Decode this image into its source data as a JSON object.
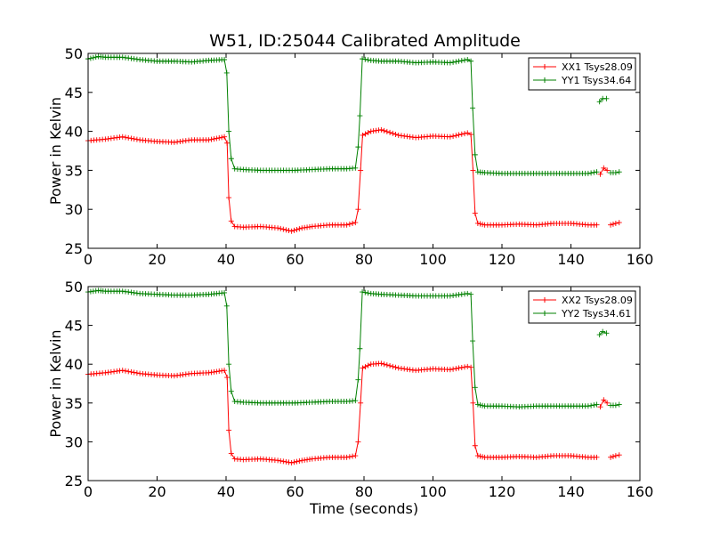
{
  "figure": {
    "title": "W51, ID:25044 Calibrated Amplitude"
  },
  "chart_data": [
    {
      "type": "line",
      "name": "top",
      "xlabel": "",
      "ylabel": "Power in Kelvin",
      "xlim": [
        0,
        160
      ],
      "ylim": [
        25,
        50
      ],
      "xticks": [
        0,
        20,
        40,
        60,
        80,
        100,
        120,
        140,
        160
      ],
      "yticks": [
        25,
        30,
        35,
        40,
        45,
        50
      ],
      "grid": false,
      "legend_position": "top-right",
      "marker": "plus",
      "series": [
        {
          "name": "XX1 Tsys28.09",
          "color": "#ff0000",
          "segments": [
            [
              [
                0,
                38.8
              ],
              [
                5,
                39.0
              ],
              [
                10,
                39.3
              ],
              [
                15,
                38.9
              ],
              [
                20,
                38.7
              ],
              [
                25,
                38.6
              ],
              [
                30,
                38.9
              ],
              [
                35,
                38.9
              ],
              [
                39.5,
                39.3
              ],
              [
                40.3,
                38.5
              ],
              [
                40.8,
                31.5
              ],
              [
                41.5,
                28.5
              ],
              [
                42.5,
                27.8
              ],
              [
                45,
                27.7
              ],
              [
                50,
                27.8
              ],
              [
                55,
                27.6
              ],
              [
                59,
                27.2
              ],
              [
                62,
                27.6
              ],
              [
                65,
                27.8
              ],
              [
                70,
                28.0
              ],
              [
                75,
                28.0
              ],
              [
                77.5,
                28.3
              ],
              [
                78.3,
                30.0
              ],
              [
                79,
                35.0
              ],
              [
                79.6,
                39.5
              ],
              [
                82,
                40.0
              ],
              [
                85,
                40.2
              ],
              [
                90,
                39.5
              ],
              [
                95,
                39.2
              ],
              [
                100,
                39.4
              ],
              [
                105,
                39.3
              ],
              [
                110,
                39.8
              ],
              [
                111,
                39.6
              ],
              [
                111.6,
                35.0
              ],
              [
                112.2,
                29.5
              ],
              [
                113,
                28.2
              ],
              [
                115,
                28.0
              ],
              [
                120,
                28.0
              ],
              [
                125,
                28.1
              ],
              [
                130,
                28.0
              ],
              [
                135,
                28.2
              ],
              [
                140,
                28.2
              ],
              [
                145,
                28.0
              ],
              [
                147.5,
                28.0
              ]
            ],
            [
              [
                148.5,
                34.5
              ],
              [
                149.5,
                35.3
              ],
              [
                150.5,
                35.0
              ]
            ],
            [
              [
                151.5,
                28.0
              ],
              [
                153,
                28.2
              ],
              [
                154,
                28.3
              ]
            ]
          ]
        },
        {
          "name": "YY1 Tsys34.64",
          "color": "#008000",
          "segments": [
            [
              [
                0,
                49.3
              ],
              [
                3,
                49.6
              ],
              [
                5,
                49.5
              ],
              [
                10,
                49.5
              ],
              [
                15,
                49.2
              ],
              [
                20,
                49.0
              ],
              [
                25,
                49.0
              ],
              [
                30,
                48.9
              ],
              [
                35,
                49.1
              ],
              [
                39.5,
                49.2
              ],
              [
                40.2,
                47.5
              ],
              [
                40.8,
                40.0
              ],
              [
                41.5,
                36.5
              ],
              [
                42.5,
                35.2
              ],
              [
                45,
                35.1
              ],
              [
                50,
                35.0
              ],
              [
                55,
                35.0
              ],
              [
                60,
                35.0
              ],
              [
                65,
                35.1
              ],
              [
                70,
                35.2
              ],
              [
                75,
                35.2
              ],
              [
                77.5,
                35.3
              ],
              [
                78.3,
                38.0
              ],
              [
                78.8,
                42.0
              ],
              [
                79.5,
                49.3
              ],
              [
                82,
                49.1
              ],
              [
                85,
                49.0
              ],
              [
                90,
                49.0
              ],
              [
                95,
                48.8
              ],
              [
                100,
                48.9
              ],
              [
                105,
                48.8
              ],
              [
                110,
                49.2
              ],
              [
                111,
                49.0
              ],
              [
                111.5,
                43.0
              ],
              [
                112.2,
                37.0
              ],
              [
                113,
                34.8
              ],
              [
                115,
                34.7
              ],
              [
                120,
                34.6
              ],
              [
                125,
                34.6
              ],
              [
                130,
                34.6
              ],
              [
                135,
                34.6
              ],
              [
                140,
                34.6
              ],
              [
                145,
                34.6
              ],
              [
                147.5,
                34.8
              ]
            ],
            [
              [
                148.3,
                43.8
              ],
              [
                149.2,
                44.2
              ],
              [
                150.3,
                44.2
              ]
            ],
            [
              [
                151.5,
                34.7
              ],
              [
                153,
                34.7
              ],
              [
                154,
                34.8
              ]
            ]
          ]
        }
      ]
    },
    {
      "type": "line",
      "name": "bottom",
      "xlabel": "Time (seconds)",
      "ylabel": "Power in Kelvin",
      "xlim": [
        0,
        160
      ],
      "ylim": [
        25,
        50
      ],
      "xticks": [
        0,
        20,
        40,
        60,
        80,
        100,
        120,
        140,
        160
      ],
      "yticks": [
        25,
        30,
        35,
        40,
        45,
        50
      ],
      "grid": false,
      "legend_position": "top-right",
      "marker": "plus",
      "series": [
        {
          "name": "XX2 Tsys28.09",
          "color": "#ff0000",
          "segments": [
            [
              [
                0,
                38.7
              ],
              [
                5,
                38.9
              ],
              [
                10,
                39.2
              ],
              [
                15,
                38.8
              ],
              [
                20,
                38.6
              ],
              [
                25,
                38.5
              ],
              [
                30,
                38.8
              ],
              [
                35,
                38.9
              ],
              [
                39.5,
                39.2
              ],
              [
                40.3,
                38.3
              ],
              [
                40.8,
                31.5
              ],
              [
                41.5,
                28.5
              ],
              [
                42.5,
                27.8
              ],
              [
                45,
                27.7
              ],
              [
                50,
                27.8
              ],
              [
                55,
                27.6
              ],
              [
                59,
                27.3
              ],
              [
                62,
                27.6
              ],
              [
                65,
                27.8
              ],
              [
                70,
                28.0
              ],
              [
                75,
                28.0
              ],
              [
                77.5,
                28.2
              ],
              [
                78.3,
                30.0
              ],
              [
                79,
                35.0
              ],
              [
                79.6,
                39.5
              ],
              [
                82,
                40.0
              ],
              [
                85,
                40.1
              ],
              [
                90,
                39.5
              ],
              [
                95,
                39.2
              ],
              [
                100,
                39.4
              ],
              [
                105,
                39.3
              ],
              [
                110,
                39.7
              ],
              [
                111,
                39.6
              ],
              [
                111.6,
                35.0
              ],
              [
                112.2,
                29.5
              ],
              [
                113,
                28.2
              ],
              [
                115,
                28.0
              ],
              [
                120,
                28.0
              ],
              [
                125,
                28.1
              ],
              [
                130,
                28.0
              ],
              [
                135,
                28.2
              ],
              [
                140,
                28.2
              ],
              [
                145,
                28.0
              ],
              [
                147.5,
                28.0
              ]
            ],
            [
              [
                148.5,
                34.5
              ],
              [
                149.5,
                35.4
              ],
              [
                150.5,
                35.0
              ]
            ],
            [
              [
                151.5,
                28.0
              ],
              [
                153,
                28.2
              ],
              [
                154,
                28.3
              ]
            ]
          ]
        },
        {
          "name": "YY2 Tsys34.61",
          "color": "#008000",
          "segments": [
            [
              [
                0,
                49.3
              ],
              [
                3,
                49.5
              ],
              [
                5,
                49.4
              ],
              [
                10,
                49.4
              ],
              [
                15,
                49.1
              ],
              [
                20,
                49.0
              ],
              [
                25,
                48.9
              ],
              [
                30,
                48.9
              ],
              [
                35,
                49.0
              ],
              [
                39.5,
                49.2
              ],
              [
                40.2,
                47.5
              ],
              [
                40.8,
                40.0
              ],
              [
                41.5,
                36.5
              ],
              [
                42.5,
                35.2
              ],
              [
                45,
                35.1
              ],
              [
                50,
                35.0
              ],
              [
                55,
                35.0
              ],
              [
                60,
                35.0
              ],
              [
                65,
                35.1
              ],
              [
                70,
                35.2
              ],
              [
                75,
                35.2
              ],
              [
                77.5,
                35.3
              ],
              [
                78.3,
                38.0
              ],
              [
                78.8,
                42.0
              ],
              [
                79.5,
                49.3
              ],
              [
                82,
                49.1
              ],
              [
                85,
                49.0
              ],
              [
                90,
                48.9
              ],
              [
                95,
                48.8
              ],
              [
                100,
                48.8
              ],
              [
                105,
                48.8
              ],
              [
                110,
                49.1
              ],
              [
                111,
                49.0
              ],
              [
                111.5,
                43.0
              ],
              [
                112.2,
                37.0
              ],
              [
                113,
                34.8
              ],
              [
                115,
                34.6
              ],
              [
                120,
                34.6
              ],
              [
                125,
                34.5
              ],
              [
                130,
                34.6
              ],
              [
                135,
                34.6
              ],
              [
                140,
                34.6
              ],
              [
                145,
                34.6
              ],
              [
                147.5,
                34.8
              ]
            ],
            [
              [
                148.3,
                43.8
              ],
              [
                149.2,
                44.2
              ],
              [
                150.3,
                44.0
              ]
            ],
            [
              [
                151.5,
                34.7
              ],
              [
                153,
                34.7
              ],
              [
                154,
                34.8
              ]
            ]
          ]
        }
      ]
    }
  ]
}
